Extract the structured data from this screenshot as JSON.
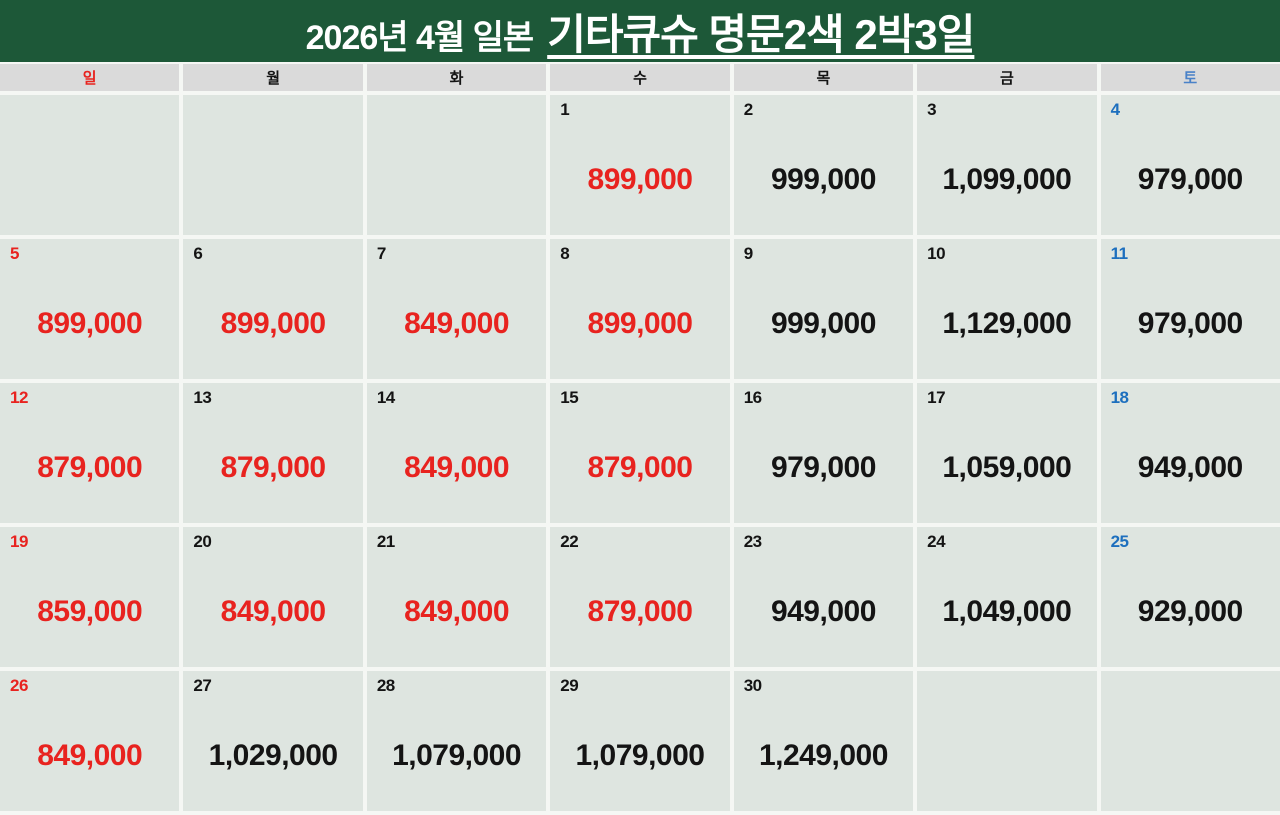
{
  "title": {
    "prefix": "2026년 4월 일본",
    "underlined": "기타큐슈 명문2색 2박3일"
  },
  "colors": {
    "header_green": "#1d5838",
    "title_text": "#ffffff",
    "weekday_row_bg": "#dadada",
    "cell_bg": "#dee5e0",
    "gutter": "#f5f7f4",
    "price_red": "#e8231f",
    "text_black": "#141414",
    "saturday_header_blue": "#4a82c8",
    "saturday_number_blue": "#1d6fbe"
  },
  "weekday_headers": [
    {
      "label": "일",
      "color": "red"
    },
    {
      "label": "월",
      "color": "black"
    },
    {
      "label": "화",
      "color": "black"
    },
    {
      "label": "수",
      "color": "black"
    },
    {
      "label": "목",
      "color": "black"
    },
    {
      "label": "금",
      "color": "black"
    },
    {
      "label": "토",
      "color": "blue-soft"
    }
  ],
  "weeks": [
    [
      null,
      null,
      null,
      {
        "day": "1",
        "day_color": "black",
        "price": "899,000",
        "price_color": "red"
      },
      {
        "day": "2",
        "day_color": "black",
        "price": "999,000",
        "price_color": "black"
      },
      {
        "day": "3",
        "day_color": "black",
        "price": "1,099,000",
        "price_color": "black"
      },
      {
        "day": "4",
        "day_color": "blue",
        "price": "979,000",
        "price_color": "black"
      }
    ],
    [
      {
        "day": "5",
        "day_color": "red",
        "price": "899,000",
        "price_color": "red"
      },
      {
        "day": "6",
        "day_color": "black",
        "price": "899,000",
        "price_color": "red"
      },
      {
        "day": "7",
        "day_color": "black",
        "price": "849,000",
        "price_color": "red"
      },
      {
        "day": "8",
        "day_color": "black",
        "price": "899,000",
        "price_color": "red"
      },
      {
        "day": "9",
        "day_color": "black",
        "price": "999,000",
        "price_color": "black"
      },
      {
        "day": "10",
        "day_color": "black",
        "price": "1,129,000",
        "price_color": "black"
      },
      {
        "day": "11",
        "day_color": "blue",
        "price": "979,000",
        "price_color": "black"
      }
    ],
    [
      {
        "day": "12",
        "day_color": "red",
        "price": "879,000",
        "price_color": "red"
      },
      {
        "day": "13",
        "day_color": "black",
        "price": "879,000",
        "price_color": "red"
      },
      {
        "day": "14",
        "day_color": "black",
        "price": "849,000",
        "price_color": "red"
      },
      {
        "day": "15",
        "day_color": "black",
        "price": "879,000",
        "price_color": "red"
      },
      {
        "day": "16",
        "day_color": "black",
        "price": "979,000",
        "price_color": "black"
      },
      {
        "day": "17",
        "day_color": "black",
        "price": "1,059,000",
        "price_color": "black"
      },
      {
        "day": "18",
        "day_color": "blue",
        "price": "949,000",
        "price_color": "black"
      }
    ],
    [
      {
        "day": "19",
        "day_color": "red",
        "price": "859,000",
        "price_color": "red"
      },
      {
        "day": "20",
        "day_color": "black",
        "price": "849,000",
        "price_color": "red"
      },
      {
        "day": "21",
        "day_color": "black",
        "price": "849,000",
        "price_color": "red"
      },
      {
        "day": "22",
        "day_color": "black",
        "price": "879,000",
        "price_color": "red"
      },
      {
        "day": "23",
        "day_color": "black",
        "price": "949,000",
        "price_color": "black"
      },
      {
        "day": "24",
        "day_color": "black",
        "price": "1,049,000",
        "price_color": "black"
      },
      {
        "day": "25",
        "day_color": "blue",
        "price": "929,000",
        "price_color": "black"
      }
    ],
    [
      {
        "day": "26",
        "day_color": "red",
        "price": "849,000",
        "price_color": "red"
      },
      {
        "day": "27",
        "day_color": "black",
        "price": "1,029,000",
        "price_color": "black"
      },
      {
        "day": "28",
        "day_color": "black",
        "price": "1,079,000",
        "price_color": "black"
      },
      {
        "day": "29",
        "day_color": "black",
        "price": "1,079,000",
        "price_color": "black"
      },
      {
        "day": "30",
        "day_color": "black",
        "price": "1,249,000",
        "price_color": "black"
      },
      null,
      null
    ]
  ]
}
